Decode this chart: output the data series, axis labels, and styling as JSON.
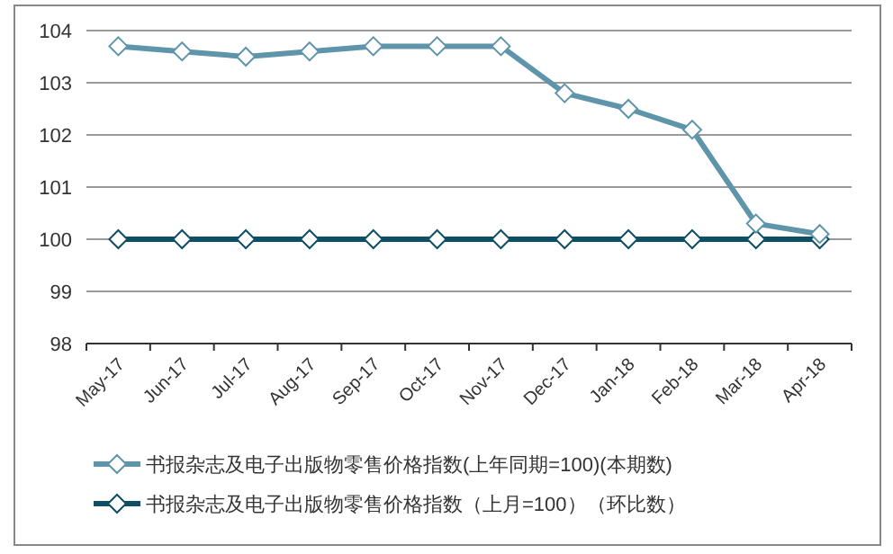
{
  "chart_data": {
    "type": "line",
    "categories": [
      "May-17",
      "Jun-17",
      "Jul-17",
      "Aug-17",
      "Sep-17",
      "Oct-17",
      "Nov-17",
      "Dec-17",
      "Jan-18",
      "Feb-18",
      "Mar-18",
      "Apr-18"
    ],
    "series": [
      {
        "name": "书报杂志及电子出版物零售价格指数(上年同期=100)(本期数)",
        "color": "#5f95aa",
        "values": [
          103.7,
          103.6,
          103.5,
          103.6,
          103.7,
          103.7,
          103.7,
          102.8,
          102.5,
          102.1,
          100.3,
          100.1
        ]
      },
      {
        "name": "书报杂志及电子出版物零售价格指数（上月=100）（环比数）",
        "color": "#0e4f66",
        "values": [
          100.0,
          100.0,
          100.0,
          100.0,
          100.0,
          100.0,
          100.0,
          100.0,
          100.0,
          100.0,
          100.0,
          100.0
        ]
      }
    ],
    "ylim": [
      98,
      104
    ],
    "yticks": [
      98,
      99,
      100,
      101,
      102,
      103,
      104
    ],
    "grid": "y",
    "legend": "bottom",
    "marker": "diamond",
    "line_style": "solid"
  }
}
